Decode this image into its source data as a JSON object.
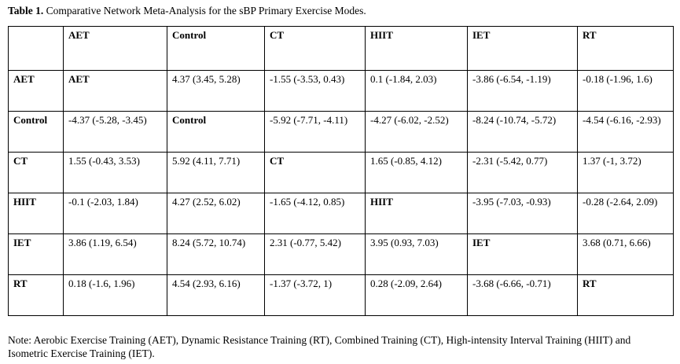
{
  "caption": {
    "label": "Table 1.",
    "text": " Comparative Network Meta-Analysis for the sBP Primary Exercise Modes."
  },
  "table": {
    "columns": [
      "",
      "AET",
      "Control",
      "CT",
      "HIIT",
      "IET",
      "RT"
    ],
    "rows": [
      {
        "name": "AET",
        "cells": [
          "AET",
          "4.37 (3.45, 5.28)",
          "-1.55 (-3.53, 0.43)",
          "0.1 (-1.84, 2.03)",
          "-3.86 (-6.54, -1.19)",
          "-0.18 (-1.96, 1.6)"
        ]
      },
      {
        "name": "Control",
        "cells": [
          "-4.37 (-5.28, -3.45)",
          "Control",
          "-5.92 (-7.71, -4.11)",
          "-4.27 (-6.02, -2.52)",
          "-8.24 (-10.74, -5.72)",
          "-4.54 (-6.16, -2.93)"
        ]
      },
      {
        "name": "CT",
        "cells": [
          "1.55 (-0.43, 3.53)",
          "5.92 (4.11, 7.71)",
          "CT",
          "1.65 (-0.85, 4.12)",
          "-2.31 (-5.42, 0.77)",
          "1.37 (-1, 3.72)"
        ]
      },
      {
        "name": "HIIT",
        "cells": [
          "-0.1 (-2.03, 1.84)",
          "4.27 (2.52, 6.02)",
          "-1.65 (-4.12, 0.85)",
          "HIIT",
          "-3.95 (-7.03, -0.93)",
          "-0.28 (-2.64, 2.09)"
        ]
      },
      {
        "name": "IET",
        "cells": [
          "3.86 (1.19, 6.54)",
          "8.24 (5.72, 10.74)",
          "2.31 (-0.77, 5.42)",
          "3.95 (0.93, 7.03)",
          "IET",
          "3.68 (0.71, 6.66)"
        ]
      },
      {
        "name": "RT",
        "cells": [
          "0.18 (-1.6, 1.96)",
          "4.54 (2.93, 6.16)",
          "-1.37 (-3.72, 1)",
          "0.28 (-2.09, 2.64)",
          "-3.68 (-6.66, -0.71)",
          "RT"
        ]
      }
    ]
  },
  "note": "Note: Aerobic Exercise Training (AET), Dynamic Resistance Training (RT), Combined Training (CT), High-intensity Interval Training (HIIT) and Isometric Exercise Training (IET)."
}
